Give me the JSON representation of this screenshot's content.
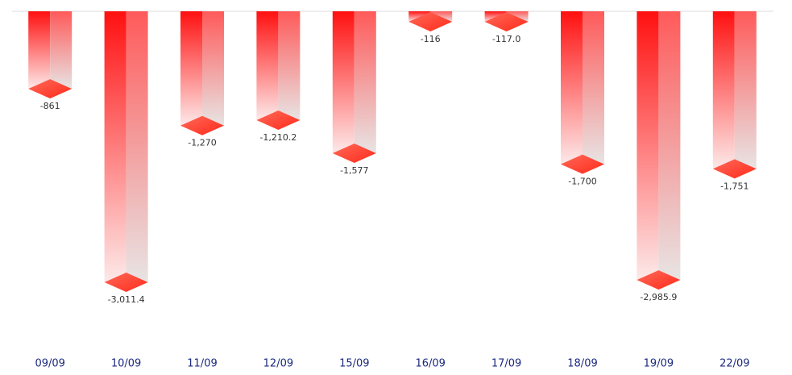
{
  "chart_data": {
    "type": "bar",
    "categories": [
      "09/09",
      "10/09",
      "11/09",
      "12/09",
      "15/09",
      "16/09",
      "17/09",
      "18/09",
      "19/09",
      "22/09"
    ],
    "values": [
      -861,
      -3011.4,
      -1270,
      -1210.2,
      -1577,
      -116,
      -117.0,
      -1700,
      -2985.9,
      -1751
    ],
    "value_labels": [
      "-861",
      "-3,011.4",
      "-1,270",
      "-1,210.2",
      "-1,577",
      "-116",
      "-117.0",
      "-1,700",
      "-2,985.9",
      "-1,751"
    ],
    "color": "#ff1a1a",
    "ylim": [
      -3500,
      0
    ]
  }
}
